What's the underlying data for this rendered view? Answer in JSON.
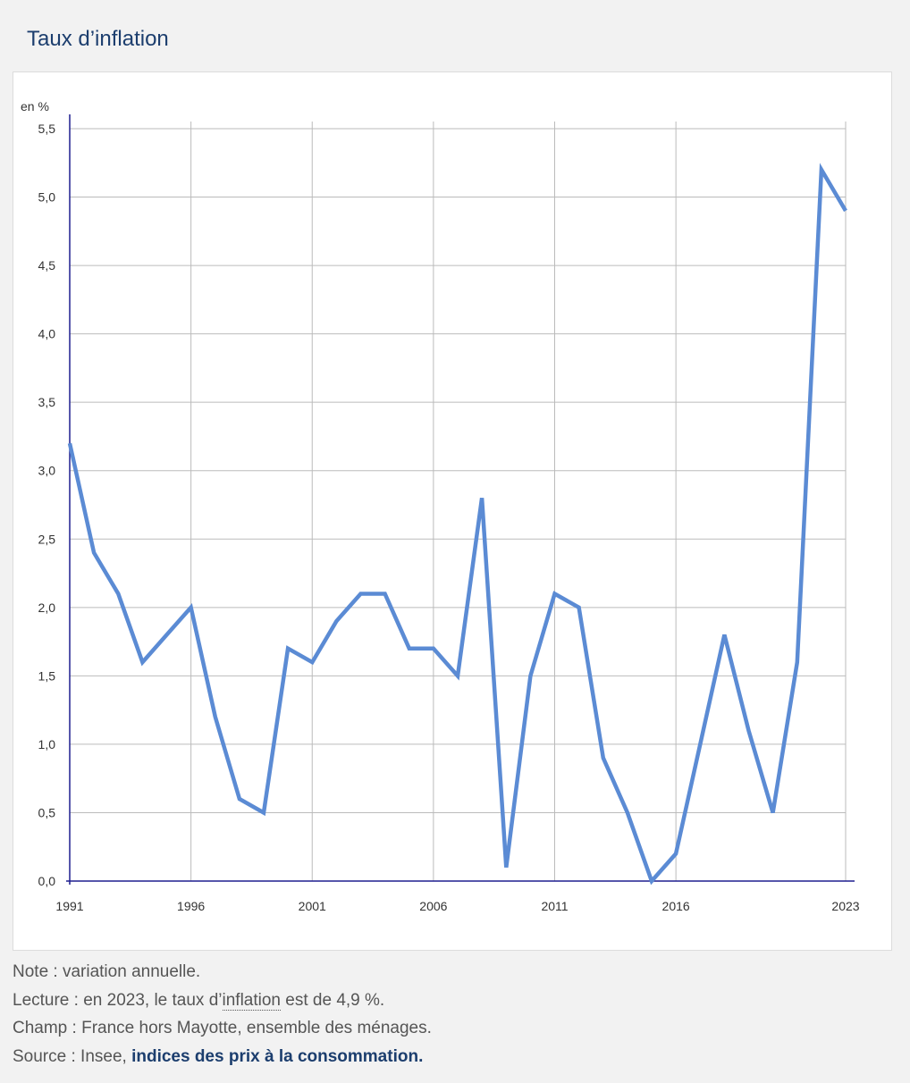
{
  "title": "Taux d’inflation",
  "notes": {
    "note": "Note : variation annuelle.",
    "lecture_prefix": "Lecture : en 2023, le taux d’",
    "lecture_term": "inflation",
    "lecture_suffix": " est de 4,9 %.",
    "champ": "Champ : France hors Mayotte, ensemble des ménages.",
    "source_prefix": "Source : Insee, ",
    "source_link": "indices des prix à la consommation."
  },
  "colors": {
    "line": "#5b8bd4",
    "axis": "#1f1f8f",
    "grid": "#bbbbbb",
    "title": "#1c3e6e"
  },
  "chart_data": {
    "type": "line",
    "title": "Taux d’inflation",
    "ylabel": "en %",
    "xlabel": "",
    "ylim": [
      0,
      5.5
    ],
    "xlim": [
      1991,
      2023
    ],
    "grid": true,
    "y_ticks": [
      "0,0",
      "0,5",
      "1,0",
      "1,5",
      "2,0",
      "2,5",
      "3,0",
      "3,5",
      "4,0",
      "4,5",
      "5,0",
      "5,5"
    ],
    "y_tick_values": [
      0,
      0.5,
      1.0,
      1.5,
      2.0,
      2.5,
      3.0,
      3.5,
      4.0,
      4.5,
      5.0,
      5.5
    ],
    "x_ticks": [
      "1991",
      "1996",
      "2001",
      "2006",
      "2011",
      "2016",
      "2023"
    ],
    "x_tick_values": [
      1991,
      1996,
      2001,
      2006,
      2011,
      2016,
      2023
    ],
    "x": [
      1991,
      1992,
      1993,
      1994,
      1995,
      1996,
      1997,
      1998,
      1999,
      2000,
      2001,
      2002,
      2003,
      2004,
      2005,
      2006,
      2007,
      2008,
      2009,
      2010,
      2011,
      2012,
      2013,
      2014,
      2015,
      2016,
      2017,
      2018,
      2019,
      2020,
      2021,
      2022,
      2023
    ],
    "values": [
      3.2,
      2.4,
      2.1,
      1.6,
      1.8,
      2.0,
      1.2,
      0.6,
      0.5,
      1.7,
      1.6,
      1.9,
      2.1,
      2.1,
      1.7,
      1.7,
      1.5,
      2.8,
      0.1,
      1.5,
      2.1,
      2.0,
      0.9,
      0.5,
      0.0,
      0.2,
      1.0,
      1.8,
      1.1,
      0.5,
      1.6,
      5.2,
      4.9
    ]
  }
}
